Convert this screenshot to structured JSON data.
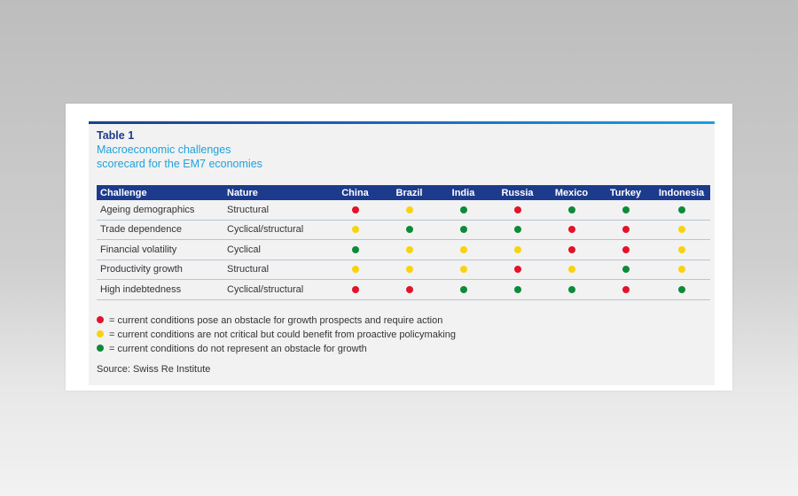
{
  "table_label": "Table 1",
  "table_title_line1": "Macroeconomic challenges",
  "table_title_line2": "scorecard for the EM7 economies",
  "header": {
    "challenge": "Challenge",
    "nature": "Nature",
    "countries": [
      "China",
      "Brazil",
      "India",
      "Russia",
      "Mexico",
      "Turkey",
      "Indonesia"
    ]
  },
  "rows": [
    {
      "challenge": "Ageing demographics",
      "nature": "Structural",
      "ratings": [
        "red",
        "yellow",
        "green",
        "red",
        "green",
        "green",
        "green"
      ]
    },
    {
      "challenge": "Trade dependence",
      "nature": "Cyclical/structural",
      "ratings": [
        "yellow",
        "green",
        "green",
        "green",
        "red",
        "red",
        "yellow"
      ]
    },
    {
      "challenge": "Financial volatility",
      "nature": "Cyclical",
      "ratings": [
        "green",
        "yellow",
        "yellow",
        "yellow",
        "red",
        "red",
        "yellow"
      ]
    },
    {
      "challenge": "Productivity growth",
      "nature": "Structural",
      "ratings": [
        "yellow",
        "yellow",
        "yellow",
        "red",
        "yellow",
        "green",
        "yellow"
      ]
    },
    {
      "challenge": "High indebtedness",
      "nature": "Cyclical/structural",
      "ratings": [
        "red",
        "red",
        "green",
        "green",
        "green",
        "red",
        "green"
      ]
    }
  ],
  "colors": {
    "red": "#e2132b",
    "yellow": "#f7d30f",
    "green": "#0e8a3a"
  },
  "legend": [
    {
      "color": "red",
      "text": "= current conditions pose an obstacle for growth prospects and require action"
    },
    {
      "color": "yellow",
      "text": "= current conditions are not critical but could benefit from proactive policymaking"
    },
    {
      "color": "green",
      "text": "= current conditions do not represent an obstacle for growth"
    }
  ],
  "source": "Source: Swiss Re Institute"
}
